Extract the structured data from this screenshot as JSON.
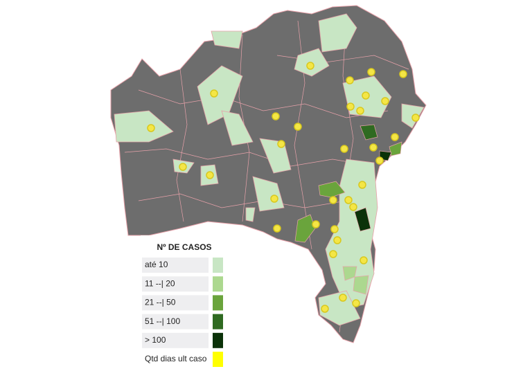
{
  "legend": {
    "title": "Nº DE CASOS",
    "items": [
      {
        "label": "até 10",
        "color": "#c8e6c4"
      },
      {
        "label": "11 --| 20",
        "color": "#acd88f"
      },
      {
        "label": "21 --| 50",
        "color": "#6aa43c"
      },
      {
        "label": "51 --| 100",
        "color": "#2f6a21"
      },
      {
        "label": "> 100",
        "color": "#0b3209"
      },
      {
        "label": "Qtd dias ult caso",
        "color": "#ffff00"
      }
    ]
  }
}
